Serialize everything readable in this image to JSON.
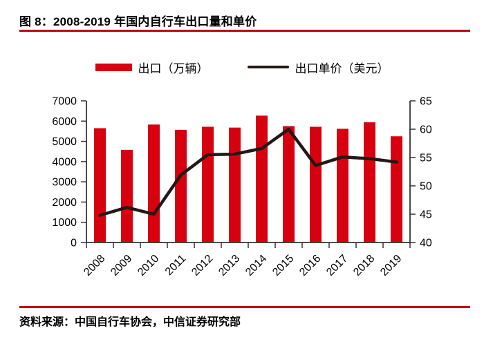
{
  "title": "图 8：2008-2019 年国内自行车出口量和单价",
  "source": "资料来源：中国自行车协会，中信证券研究部",
  "colors": {
    "bar": "#d7000f",
    "line": "#231815",
    "rule": "#c00000",
    "axis": "#333333"
  },
  "legend": [
    {
      "label": "出口（万辆）",
      "swatch": "bar-swatch"
    },
    {
      "label": "出口单价（美元）",
      "swatch": "line-swatch"
    }
  ],
  "chart_data": {
    "type": "bar",
    "subtype": "bar+line combo, dual axis",
    "categories": [
      "2008",
      "2009",
      "2010",
      "2011",
      "2012",
      "2013",
      "2014",
      "2015",
      "2016",
      "2017",
      "2018",
      "2019"
    ],
    "series": [
      {
        "name": "出口（万辆）",
        "type": "bar",
        "axis": "left",
        "values": [
          5650,
          4580,
          5830,
          5570,
          5720,
          5680,
          6270,
          5750,
          5720,
          5620,
          5940,
          5250
        ]
      },
      {
        "name": "出口单价（美元）",
        "type": "line",
        "axis": "right",
        "values": [
          44.8,
          46.2,
          45.0,
          51.9,
          55.5,
          55.6,
          56.6,
          60.0,
          53.6,
          55.1,
          54.8,
          54.2
        ]
      }
    ],
    "left_axis": {
      "min": 0,
      "max": 7000,
      "step": 1000,
      "tick_labels": [
        "0",
        "1000",
        "2000",
        "3000",
        "4000",
        "5000",
        "6000",
        "7000"
      ]
    },
    "right_axis": {
      "min": 40,
      "max": 65,
      "step": 5,
      "tick_labels": [
        "40",
        "45",
        "50",
        "55",
        "60",
        "65"
      ]
    },
    "grid": false,
    "legend_position": "top",
    "x_tick_rotation": -45
  }
}
